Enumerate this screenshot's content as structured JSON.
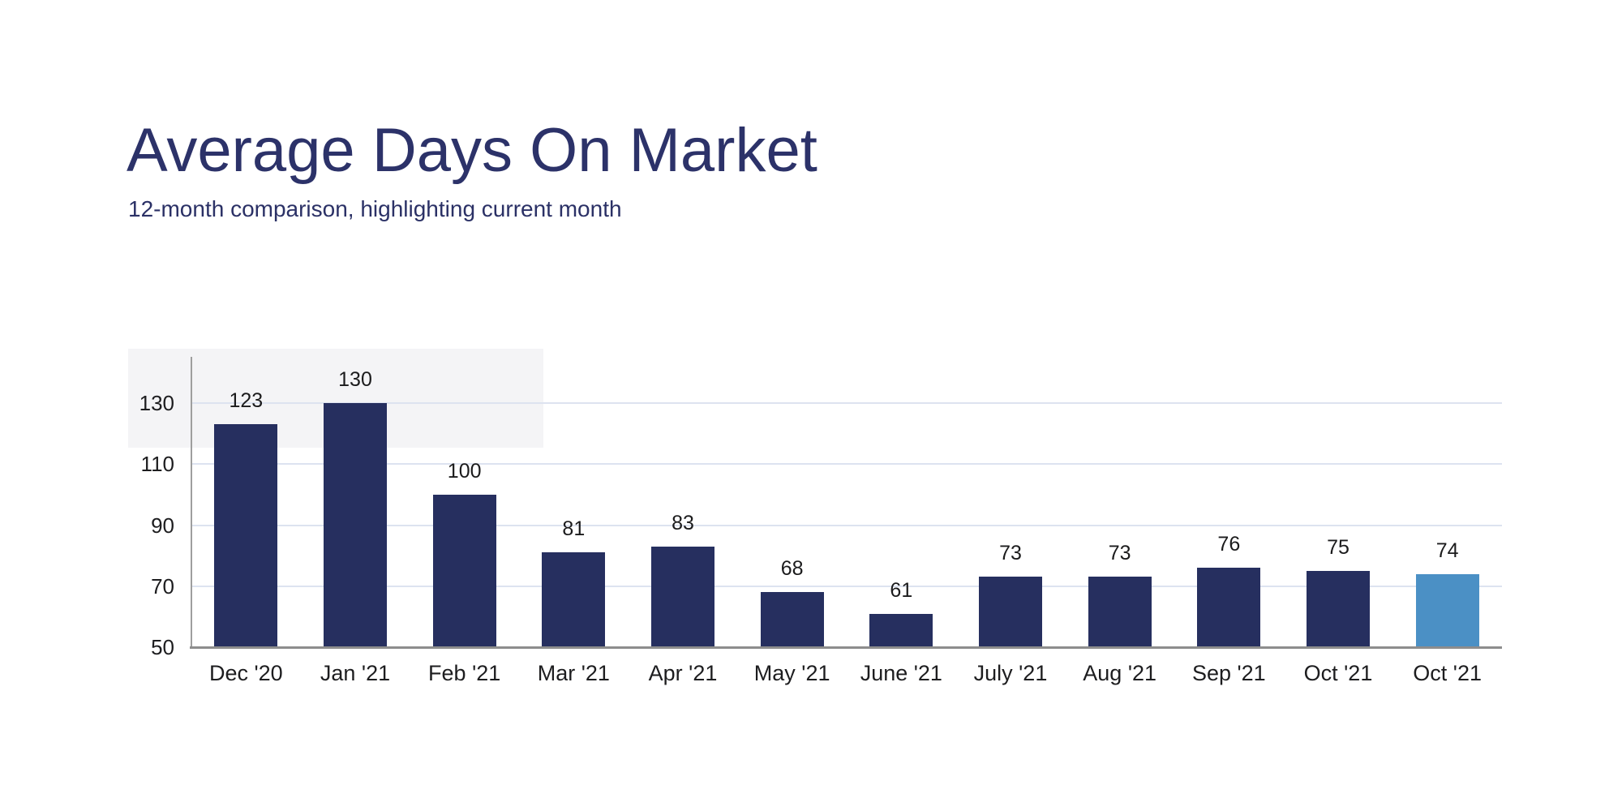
{
  "header": {
    "title": "Average Days On Market",
    "subtitle": "12-month comparison, highlighting current month",
    "title_color": "#2c3269",
    "subtitle_color": "#2b3166"
  },
  "chart_data": {
    "type": "bar",
    "title": "Average Days On Market",
    "subtitle": "12-month comparison, highlighting current month",
    "categories": [
      "Dec '20",
      "Jan '21",
      "Feb '21",
      "Mar '21",
      "Apr '21",
      "May '21",
      "June '21",
      "July '21",
      "Aug '21",
      "Sep '21",
      "Oct '21",
      "Oct '21"
    ],
    "values": [
      123,
      130,
      100,
      81,
      83,
      68,
      61,
      73,
      73,
      76,
      75,
      74
    ],
    "value_labels_shown": true,
    "highlight_index": 11,
    "xlabel": "",
    "ylabel": "",
    "y_ticks": [
      50,
      70,
      90,
      110,
      130
    ],
    "ylim": [
      50,
      145
    ],
    "grid": true,
    "legend": false,
    "colors": {
      "bar": "#262f5f",
      "highlight_bar": "#4b90c5",
      "gridline": "#dde3f0",
      "y_axis_line": "#9e9e9e",
      "x_axis_line": "#8d8d8d",
      "tick_label": "#1d1d1f",
      "value_label": "#1b1b1c",
      "background_block": "#f4f4f6"
    }
  }
}
